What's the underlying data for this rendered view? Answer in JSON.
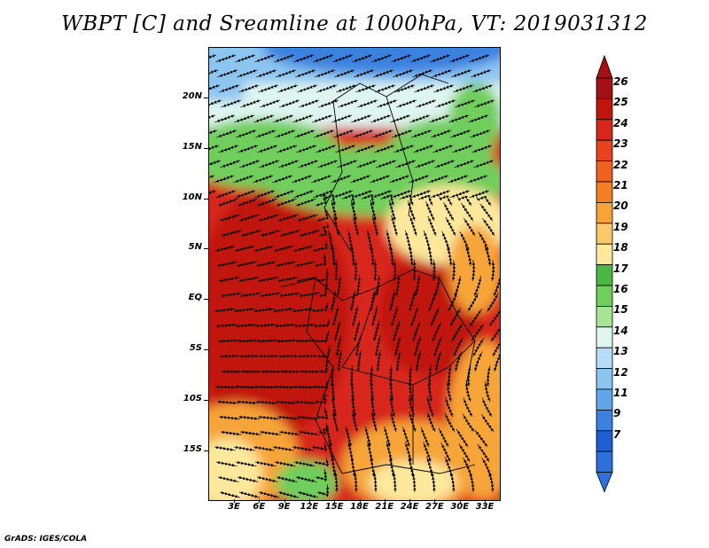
{
  "title": "WBPT [C] and Sreamline at 1000hPa, VT: 2019031312",
  "credit": "GrADS: IGES/COLA",
  "lat_labels": [
    "20N",
    "15N",
    "10N",
    "5N",
    "EQ",
    "5S",
    "10S",
    "15S"
  ],
  "lon_labels": [
    "3E",
    "6E",
    "9E",
    "12E",
    "15E",
    "18E",
    "21E",
    "24E",
    "27E",
    "30E",
    "33E"
  ],
  "colorbar": {
    "labels": [
      "26",
      "25",
      "24",
      "23",
      "22",
      "21",
      "20",
      "19",
      "18",
      "17",
      "16",
      "15",
      "14",
      "13",
      "12",
      "11",
      "9",
      "7"
    ],
    "colors": [
      "#a50f15",
      "#c0150f",
      "#d8261a",
      "#e8431c",
      "#f0601f",
      "#f47f22",
      "#f7a437",
      "#fbc96a",
      "#fde89c",
      "#4cb844",
      "#6fce5c",
      "#a7e495",
      "#dff5f0",
      "#b6ddf6",
      "#8dc5f1",
      "#5fa6ea",
      "#3b82e0",
      "#1e5fd4",
      "#2f6fdc"
    ],
    "top_arrow_color": "#a50f15",
    "bottom_arrow_color": "#2f6fdc"
  },
  "field_colors": {
    "cold": "#3b82e0",
    "cool": "#8dc5f1",
    "mild": "#dff5f0",
    "green": "#6fce5c",
    "yellow": "#fde89c",
    "orange": "#f7a437",
    "red": "#d8261a",
    "darkred": "#c0150f"
  }
}
